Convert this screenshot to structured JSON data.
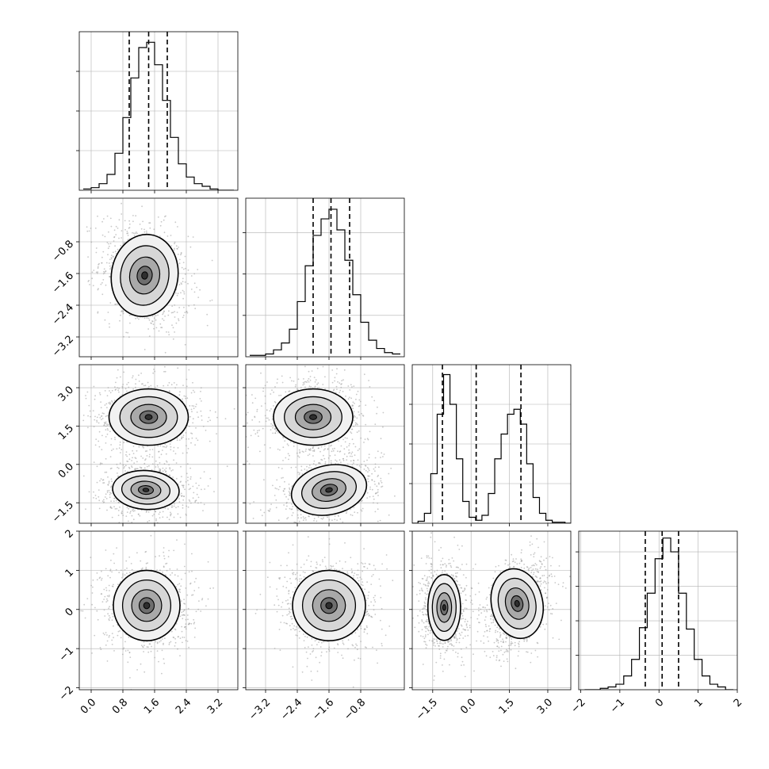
{
  "chart_data": {
    "type": "corner",
    "parameters": 4,
    "grid": true,
    "colors": {
      "line": "#000000",
      "grid": "#b0b0b0",
      "scatter": "#9a9a9a",
      "hist2d_dark": "#3a3a3a"
    },
    "quantiles_description": "dashed vertical lines at 16th, 50th, 84th percentiles",
    "histograms": [
      {
        "param": 0,
        "range": [
          -0.3,
          3.7
        ],
        "bins_centers": [
          -0.1,
          0.1,
          0.3,
          0.5,
          0.7,
          0.9,
          1.1,
          1.3,
          1.5,
          1.7,
          1.9,
          2.1,
          2.3,
          2.5,
          2.7,
          2.9,
          3.1,
          3.3,
          3.5
        ],
        "counts": [
          1,
          2,
          5,
          12,
          28,
          55,
          85,
          108,
          112,
          95,
          68,
          40,
          20,
          10,
          5,
          3,
          1,
          0,
          0
        ],
        "ylim": [
          0,
          120
        ],
        "yticks": [
          0,
          30,
          60,
          90
        ],
        "quantiles": [
          0.96,
          1.45,
          1.92
        ]
      },
      {
        "param": 1,
        "range": [
          -3.7,
          0.3
        ],
        "bins_centers": [
          -3.5,
          -3.3,
          -3.1,
          -2.9,
          -2.7,
          -2.5,
          -2.3,
          -2.1,
          -1.9,
          -1.7,
          -1.5,
          -1.3,
          -1.1,
          -0.9,
          -0.7,
          -0.5,
          -0.3,
          -0.1,
          0.1
        ],
        "counts": [
          1,
          1,
          2,
          5,
          10,
          20,
          40,
          66,
          88,
          100,
          107,
          92,
          70,
          45,
          25,
          12,
          6,
          3,
          2
        ],
        "ylim": [
          0,
          115
        ],
        "yticks": [
          0,
          30,
          60,
          90
        ],
        "quantiles": [
          -2.0,
          -1.55,
          -1.08
        ]
      },
      {
        "param": 2,
        "range": [
          -2.3,
          3.9
        ],
        "bins_centers": [
          -2.2,
          -1.95,
          -1.7,
          -1.45,
          -1.2,
          -0.95,
          -0.7,
          -0.45,
          -0.2,
          0.05,
          0.3,
          0.55,
          0.8,
          1.05,
          1.3,
          1.55,
          1.8,
          2.05,
          2.3,
          2.55,
          2.8,
          3.05,
          3.3,
          3.55,
          3.8
        ],
        "counts": [
          0,
          2,
          10,
          50,
          110,
          150,
          120,
          65,
          22,
          6,
          3,
          8,
          30,
          65,
          90,
          110,
          115,
          100,
          60,
          26,
          10,
          3,
          1,
          1,
          0
        ],
        "ylim": [
          0,
          160
        ],
        "yticks": [
          0,
          40,
          80,
          120
        ],
        "quantiles": [
          -1.12,
          0.2,
          1.95
        ]
      },
      {
        "param": 3,
        "range": [
          -2.05,
          2.0
        ],
        "bins_centers": [
          -1.8,
          -1.6,
          -1.4,
          -1.2,
          -1.0,
          -0.8,
          -0.6,
          -0.4,
          -0.2,
          0.0,
          0.2,
          0.4,
          0.6,
          0.8,
          1.0,
          1.2,
          1.4,
          1.6,
          1.8
        ],
        "counts": [
          0,
          0,
          1,
          2,
          4,
          10,
          22,
          45,
          70,
          95,
          110,
          100,
          70,
          44,
          22,
          10,
          4,
          2,
          0
        ],
        "ylim": [
          0,
          115
        ],
        "yticks": [
          0,
          25,
          50,
          75,
          100
        ],
        "quantiles": [
          -0.35,
          0.08,
          0.5
        ]
      }
    ],
    "pairs": [
      {
        "x": 0,
        "y": 1,
        "blobs": [
          {
            "cx": 1.35,
            "cy": -1.65,
            "sx": 0.42,
            "sy": 0.52,
            "rho": -0.25,
            "w": 1.0
          }
        ]
      },
      {
        "x": 0,
        "y": 2,
        "blobs": [
          {
            "cx": 1.45,
            "cy": 1.85,
            "sx": 0.5,
            "sy": 0.55,
            "rho": 0.0,
            "w": 1.0
          },
          {
            "cx": 1.38,
            "cy": -1.0,
            "sx": 0.42,
            "sy": 0.38,
            "rho": -0.1,
            "w": 1.0
          }
        ]
      },
      {
        "x": 1,
        "y": 2,
        "blobs": [
          {
            "cx": -2.0,
            "cy": 1.85,
            "sx": 0.5,
            "sy": 0.55,
            "rho": 0.0,
            "w": 1.0
          },
          {
            "cx": -1.6,
            "cy": -1.0,
            "sx": 0.48,
            "sy": 0.48,
            "rho": 0.35,
            "w": 1.0
          }
        ]
      },
      {
        "x": 0,
        "y": 3,
        "blobs": [
          {
            "cx": 1.4,
            "cy": 0.1,
            "sx": 0.42,
            "sy": 0.45,
            "rho": 0.0,
            "w": 1.0
          }
        ]
      },
      {
        "x": 1,
        "y": 3,
        "blobs": [
          {
            "cx": -1.6,
            "cy": 0.1,
            "sx": 0.46,
            "sy": 0.45,
            "rho": 0.0,
            "w": 1.0
          }
        ]
      },
      {
        "x": 2,
        "y": 3,
        "blobs": [
          {
            "cx": -1.05,
            "cy": 0.05,
            "sx": 0.32,
            "sy": 0.42,
            "rho": 0.0,
            "w": 1.0
          },
          {
            "cx": 1.8,
            "cy": 0.15,
            "sx": 0.5,
            "sy": 0.45,
            "rho": 0.35,
            "w": 1.0
          }
        ]
      }
    ],
    "axes": [
      {
        "param": 0,
        "range": [
          -0.3,
          3.7
        ],
        "ticks": [
          0.0,
          0.8,
          1.6,
          2.4,
          3.2
        ],
        "tick_labels": [
          "0.0",
          "0.8",
          "1.6",
          "2.4",
          "3.2"
        ]
      },
      {
        "param": 1,
        "range": [
          -3.7,
          0.3
        ],
        "ticks": [
          -3.2,
          -2.4,
          -1.6,
          -0.8
        ],
        "tick_labels": [
          "−3.2",
          "−2.4",
          "−1.6",
          "−0.8"
        ]
      },
      {
        "param": 2,
        "range": [
          -2.3,
          3.9
        ],
        "ticks": [
          -1.5,
          0.0,
          1.5,
          3.0
        ],
        "tick_labels": [
          "−1.5",
          "0.0",
          "1.5",
          "3.0"
        ]
      },
      {
        "param": 3,
        "range": [
          -2.05,
          2.0
        ],
        "ticks": [
          -2,
          -1,
          0,
          1,
          2
        ],
        "tick_labels": [
          "−2",
          "−1",
          "0",
          "1",
          "2"
        ]
      }
    ]
  }
}
